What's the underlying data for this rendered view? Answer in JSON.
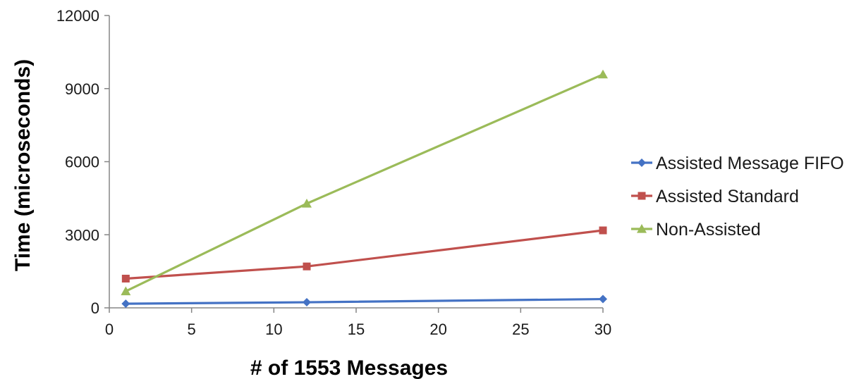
{
  "chart_data": {
    "type": "line",
    "title": "",
    "xlabel": "# of 1553 Messages",
    "ylabel": "Time (microseconds)",
    "xlim": [
      0,
      30
    ],
    "ylim": [
      0,
      12000
    ],
    "xticks": [
      0,
      5,
      10,
      15,
      20,
      25,
      30
    ],
    "yticks": [
      0,
      3000,
      6000,
      9000,
      12000
    ],
    "grid": false,
    "legend_position": "right",
    "x": [
      1,
      12,
      30
    ],
    "series": [
      {
        "name": "Assisted Message FIFO",
        "values": [
          170,
          230,
          360
        ],
        "color": "#4472C4",
        "marker": "diamond"
      },
      {
        "name": "Assisted Standard",
        "values": [
          1200,
          1700,
          3180
        ],
        "color": "#C0504D",
        "marker": "square"
      },
      {
        "name": "Non-Assisted",
        "values": [
          680,
          4280,
          9580
        ],
        "color": "#9BBB59",
        "marker": "triangle"
      }
    ]
  }
}
